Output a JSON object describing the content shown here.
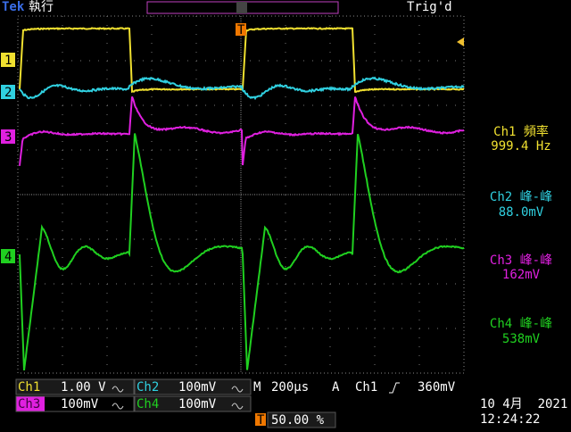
{
  "header": {
    "brand": "Tek",
    "status": "執行",
    "trigger_state": "Trig'd"
  },
  "markers": {
    "ch1": "1",
    "ch2": "2",
    "ch3": "3",
    "ch4": "4",
    "trigger": "T"
  },
  "measurements": [
    {
      "label": "Ch1 頻率",
      "value": "999.4 Hz"
    },
    {
      "label": "Ch2 峰-峰",
      "value": "88.0mV"
    },
    {
      "label": "Ch3 峰-峰",
      "value": "162mV"
    },
    {
      "label": "Ch4 峰-峰",
      "value": "538mV"
    }
  ],
  "settings": {
    "ch1": {
      "label": "Ch1",
      "scale": "1.00 V"
    },
    "ch2": {
      "label": "Ch2",
      "scale": "100mV"
    },
    "ch3": {
      "label": "Ch3",
      "scale": "100mV"
    },
    "ch4": {
      "label": "Ch4",
      "scale": "100mV"
    }
  },
  "timebase": {
    "label": "M",
    "value": "200µs"
  },
  "trigger": {
    "label": "A",
    "source": "Ch1",
    "level": "360mV"
  },
  "trigger_position": "50.00 %",
  "date": "10 4月  2021",
  "time": "12:24:22"
}
